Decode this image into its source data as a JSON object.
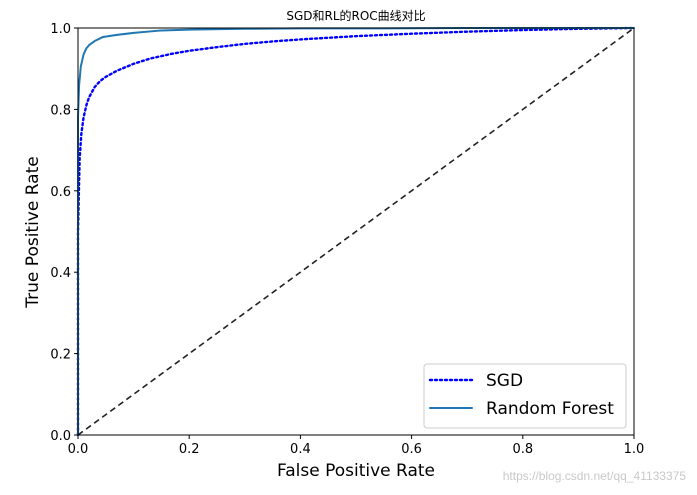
{
  "chart_data": {
    "type": "line",
    "title": "SGD和RL的ROC曲线对比",
    "xlabel": "False Positive Rate",
    "ylabel": "True Positive Rate",
    "xlim": [
      0,
      1
    ],
    "ylim": [
      0,
      1
    ],
    "xticks": [
      "0.0",
      "0.2",
      "0.4",
      "0.6",
      "0.8",
      "1.0"
    ],
    "yticks": [
      "0.0",
      "0.2",
      "0.4",
      "0.6",
      "0.8",
      "1.0"
    ],
    "grid": false,
    "legend_position": "lower-right",
    "series": [
      {
        "name": "SGD",
        "color": "#0000ff",
        "style": "dotted",
        "x": [
          0,
          0.0,
          0.003,
          0.006,
          0.01,
          0.015,
          0.02,
          0.03,
          0.04,
          0.05,
          0.07,
          0.1,
          0.13,
          0.17,
          0.2,
          0.25,
          0.3,
          0.35,
          0.4,
          0.45,
          0.5,
          0.6,
          0.7,
          0.8,
          0.9,
          1.0
        ],
        "y": [
          0,
          0.5,
          0.68,
          0.74,
          0.78,
          0.81,
          0.83,
          0.855,
          0.87,
          0.88,
          0.895,
          0.912,
          0.925,
          0.937,
          0.944,
          0.953,
          0.961,
          0.967,
          0.972,
          0.976,
          0.98,
          0.986,
          0.991,
          0.995,
          0.998,
          1.0
        ]
      },
      {
        "name": "Random Forest",
        "color": "#1f77b4",
        "style": "solid",
        "x": [
          0,
          0.0,
          0.002,
          0.005,
          0.01,
          0.015,
          0.02,
          0.03,
          0.045,
          0.07,
          0.1,
          0.15,
          0.2,
          0.3,
          0.4,
          0.5,
          0.7,
          1.0
        ],
        "y": [
          0,
          0.78,
          0.86,
          0.905,
          0.935,
          0.95,
          0.958,
          0.968,
          0.978,
          0.983,
          0.988,
          0.994,
          0.996,
          0.998,
          0.999,
          0.999,
          1.0,
          1.0
        ]
      }
    ],
    "reference_line": {
      "x": [
        0,
        1
      ],
      "y": [
        0,
        1
      ],
      "color": "#222222",
      "style": "dashed"
    }
  },
  "watermark": "https://blog.csdn.net/qq_41133375"
}
